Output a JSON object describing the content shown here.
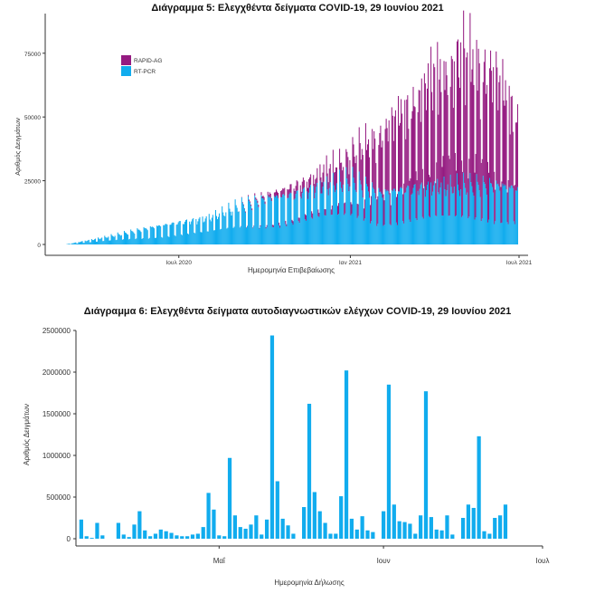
{
  "colors": {
    "rapid": "#951b81",
    "rtpcr": "#11acee",
    "axis": "#333333"
  },
  "chart_data": [
    {
      "type": "bar",
      "stacked": true,
      "title": "Διάγραμμα 5: Ελεγχθέντα δείγματα COVID-19, 29 Ιουνίου 2021",
      "xlabel": "Ημερομηνία Επιβεβαίωσης",
      "ylabel": "Αριθμός Δειγμάτων",
      "x_ticks": [
        {
          "date": "2020-07-01",
          "label": "Ιουλ 2020"
        },
        {
          "date": "2021-01-01",
          "label": "Ιαν 2021"
        },
        {
          "date": "2021-07-01",
          "label": "Ιουλ 2021"
        }
      ],
      "y_ticks": [
        0,
        25000,
        50000,
        75000
      ],
      "ylim": [
        0,
        87000
      ],
      "xlim": [
        "2020-03-01",
        "2021-07-01"
      ],
      "legend": {
        "placement": "top-left",
        "entries": [
          "RAPID-AG",
          "RT-PCR"
        ]
      },
      "x": [
        "2020-03-01",
        "2020-04-01",
        "2020-05-01",
        "2020-06-01",
        "2020-07-01",
        "2020-08-01",
        "2020-09-01",
        "2020-10-01",
        "2020-11-01",
        "2020-12-01",
        "2021-01-01",
        "2021-02-01",
        "2021-03-01",
        "2021-04-01",
        "2021-05-01",
        "2021-06-01",
        "2021-06-29"
      ],
      "series": [
        {
          "name": "RT-PCR",
          "values": [
            0,
            2000,
            4000,
            6000,
            8000,
            10000,
            14000,
            16000,
            18000,
            22000,
            24000,
            18000,
            20000,
            22000,
            22000,
            21000,
            20000
          ]
        },
        {
          "name": "RAPID-AG",
          "values": [
            0,
            0,
            0,
            0,
            0,
            0,
            0,
            1000,
            3000,
            5000,
            9000,
            20000,
            28000,
            38000,
            45000,
            40000,
            25000
          ]
        }
      ],
      "peak_daily_total": {
        "date": "2021-05-11",
        "value": 86000
      }
    },
    {
      "type": "bar",
      "title": "Διάγραμμα 6: Ελεγχθέντα δείγματα αυτοδιαγνωστικών ελέγχων COVID-19, 29 Ιουνίου 2021",
      "xlabel": "Ημερομηνία Δήλωσης",
      "ylabel": "Αριθμός Δειγμάτων",
      "x_ticks": [
        {
          "date": "2021-05-01",
          "label": "Μαΐ"
        },
        {
          "date": "2021-06-01",
          "label": "Ιουν"
        },
        {
          "date": "2021-07-01",
          "label": "Ιουλ"
        }
      ],
      "y_ticks": [
        0,
        500000,
        1000000,
        1500000,
        2000000,
        2500000
      ],
      "ylim": [
        0,
        2500000
      ],
      "xlim": [
        "2021-04-04",
        "2021-07-01"
      ],
      "x": [
        "2021-04-05",
        "2021-04-06",
        "2021-04-07",
        "2021-04-08",
        "2021-04-09",
        "2021-04-10",
        "2021-04-11",
        "2021-04-12",
        "2021-04-13",
        "2021-04-14",
        "2021-04-15",
        "2021-04-16",
        "2021-04-17",
        "2021-04-18",
        "2021-04-19",
        "2021-04-20",
        "2021-04-21",
        "2021-04-22",
        "2021-04-23",
        "2021-04-24",
        "2021-04-25",
        "2021-04-26",
        "2021-04-27",
        "2021-04-28",
        "2021-04-29",
        "2021-04-30",
        "2021-05-01",
        "2021-05-02",
        "2021-05-03",
        "2021-05-04",
        "2021-05-05",
        "2021-05-06",
        "2021-05-07",
        "2021-05-08",
        "2021-05-09",
        "2021-05-10",
        "2021-05-11",
        "2021-05-12",
        "2021-05-13",
        "2021-05-14",
        "2021-05-15",
        "2021-05-16",
        "2021-05-17",
        "2021-05-18",
        "2021-05-19",
        "2021-05-20",
        "2021-05-21",
        "2021-05-22",
        "2021-05-23",
        "2021-05-24",
        "2021-05-25",
        "2021-05-26",
        "2021-05-27",
        "2021-05-28",
        "2021-05-29",
        "2021-05-30",
        "2021-05-31",
        "2021-06-01",
        "2021-06-02",
        "2021-06-03",
        "2021-06-04",
        "2021-06-05",
        "2021-06-06",
        "2021-06-07",
        "2021-06-08",
        "2021-06-09",
        "2021-06-10",
        "2021-06-11",
        "2021-06-12",
        "2021-06-13",
        "2021-06-14",
        "2021-06-15",
        "2021-06-16",
        "2021-06-17",
        "2021-06-18",
        "2021-06-19",
        "2021-06-20",
        "2021-06-21",
        "2021-06-22",
        "2021-06-23",
        "2021-06-24",
        "2021-06-25",
        "2021-06-26",
        "2021-06-27",
        "2021-06-28",
        "2021-06-29"
      ],
      "values": [
        230000,
        30000,
        10000,
        190000,
        40000,
        0,
        0,
        190000,
        50000,
        20000,
        170000,
        330000,
        100000,
        30000,
        60000,
        110000,
        90000,
        70000,
        40000,
        30000,
        30000,
        50000,
        60000,
        140000,
        550000,
        350000,
        40000,
        30000,
        970000,
        280000,
        140000,
        120000,
        170000,
        280000,
        50000,
        230000,
        2440000,
        690000,
        240000,
        160000,
        60000,
        0,
        380000,
        1620000,
        560000,
        330000,
        190000,
        60000,
        60000,
        510000,
        2020000,
        240000,
        110000,
        270000,
        100000,
        80000,
        0,
        330000,
        1850000,
        410000,
        210000,
        200000,
        180000,
        60000,
        280000,
        1770000,
        260000,
        110000,
        100000,
        280000,
        50000,
        0,
        250000,
        410000,
        370000,
        1230000,
        90000,
        60000,
        250000,
        280000,
        410000,
        0,
        0,
        0,
        0,
        0
      ]
    }
  ]
}
